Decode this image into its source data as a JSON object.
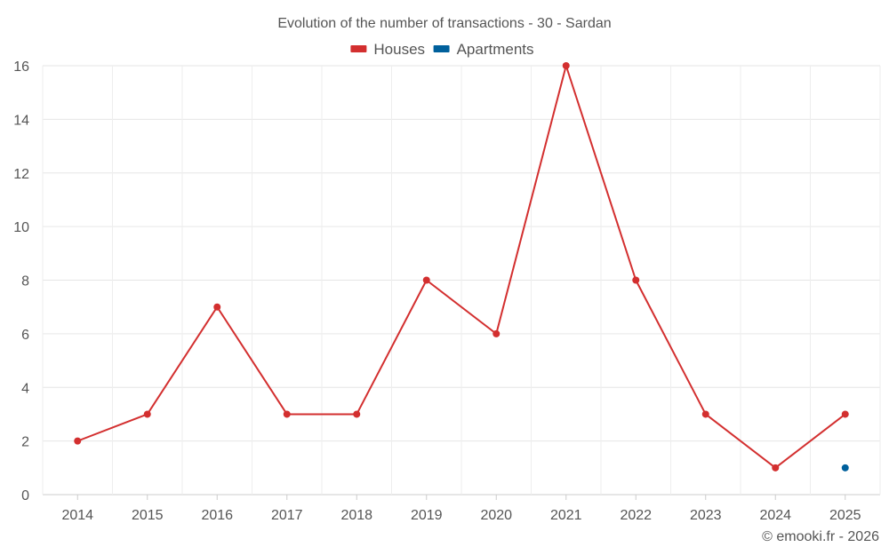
{
  "chart_data": {
    "type": "line",
    "title": "Evolution of the number of transactions - 30 - Sardan",
    "categories": [
      "2014",
      "2015",
      "2016",
      "2017",
      "2018",
      "2019",
      "2020",
      "2021",
      "2022",
      "2023",
      "2024",
      "2025"
    ],
    "series": [
      {
        "name": "Houses",
        "color": "#d32f2f",
        "values": [
          2,
          3,
          7,
          3,
          3,
          8,
          6,
          16,
          8,
          3,
          1,
          3
        ]
      },
      {
        "name": "Apartments",
        "color": "#00609c",
        "values": [
          null,
          null,
          null,
          null,
          null,
          null,
          null,
          null,
          null,
          null,
          null,
          1
        ]
      }
    ],
    "ylim": [
      0,
      16
    ],
    "yticks": [
      0,
      2,
      4,
      6,
      8,
      10,
      12,
      14,
      16
    ],
    "grid": true,
    "legend_position": "top-center"
  },
  "footer": {
    "credit": "© emooki.fr - 2026"
  }
}
